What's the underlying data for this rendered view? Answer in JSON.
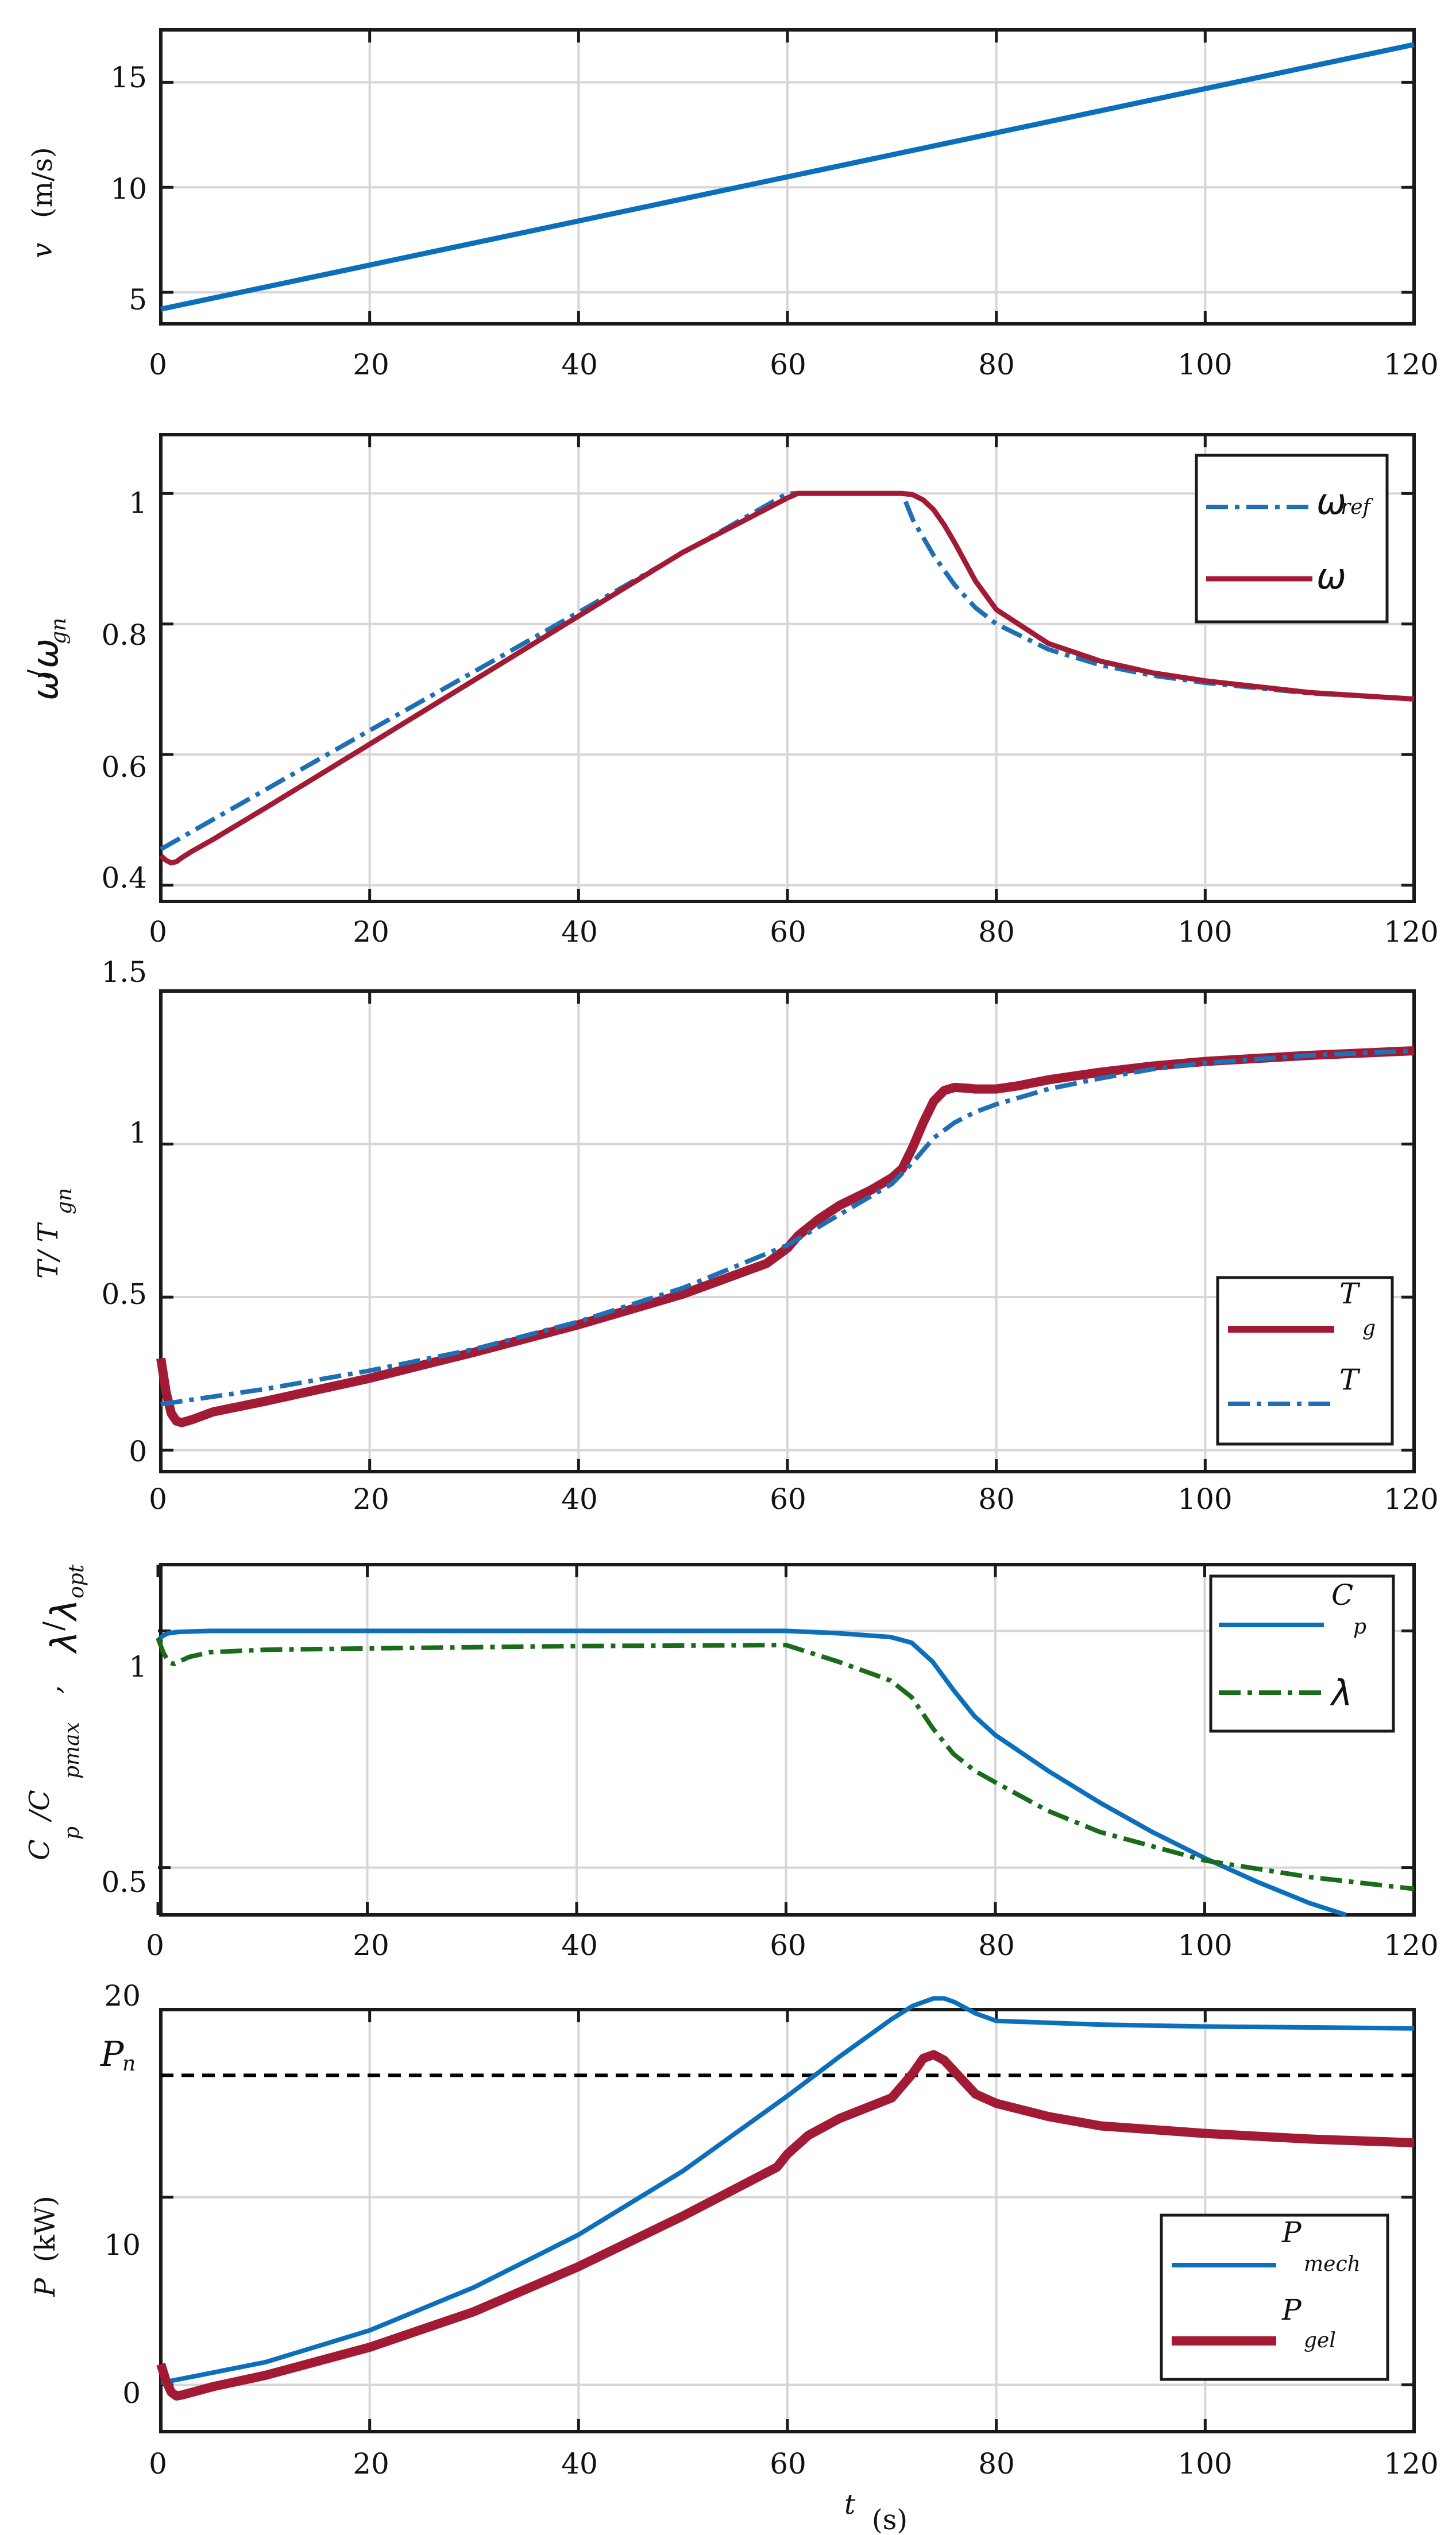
{
  "chart_data": [
    {
      "id": "wind",
      "type": "line",
      "xlim": [
        0,
        120
      ],
      "ylim": [
        3.5,
        17.5
      ],
      "xticks": [
        "0",
        "20",
        "40",
        "60",
        "80",
        "100",
        "120"
      ],
      "yticks": [
        "5",
        "10",
        "15"
      ],
      "ytick_values": [
        5,
        10,
        15
      ],
      "ylabel": "v",
      "ylabel_unit": "(m/s)",
      "series": [
        {
          "name": "v",
          "color": "#0c6fbc",
          "style": "solid",
          "x": [
            0,
            120
          ],
          "y": [
            4.2,
            16.8
          ]
        }
      ]
    },
    {
      "id": "speed",
      "type": "line",
      "xlim": [
        0,
        120
      ],
      "ylim": [
        0.375,
        1.09
      ],
      "xticks": [
        "0",
        "20",
        "40",
        "60",
        "80",
        "100",
        "120"
      ],
      "yticks": [
        "0.4",
        "0.6",
        "0.8",
        "1"
      ],
      "ytick_values": [
        0.4,
        0.6,
        0.8,
        1.0
      ],
      "ylabel_main": "ω",
      "ylabel_slash": "/",
      "ylabel_den": "ω",
      "ylabel_den_sub": "gn",
      "legend": {
        "position": "top-right",
        "entries": [
          {
            "label": "ω",
            "sub": "ref",
            "series": 0
          },
          {
            "label": "ω",
            "sub": "",
            "series": 1
          }
        ]
      },
      "series": [
        {
          "name": "ω_ref",
          "color": "#1f6fb5",
          "style": "dashdot",
          "x": [
            0,
            10,
            20,
            30,
            40,
            50,
            60,
            61,
            65,
            71,
            72,
            74,
            76,
            78,
            80,
            85,
            90,
            95,
            100,
            110,
            120
          ],
          "y": [
            0.455,
            0.546,
            0.637,
            0.727,
            0.818,
            0.909,
            1.0,
            1.0,
            1.0,
            1.0,
            0.96,
            0.905,
            0.86,
            0.825,
            0.8,
            0.761,
            0.737,
            0.721,
            0.71,
            0.694,
            0.685
          ]
        },
        {
          "name": "ω",
          "color": "#a31a34",
          "style": "solid",
          "x": [
            0,
            0.5,
            1,
            1.5,
            2,
            3,
            5,
            10,
            20,
            30,
            40,
            50,
            60,
            61,
            65,
            70,
            71,
            72,
            73,
            74,
            75,
            76,
            78,
            80,
            85,
            90,
            95,
            100,
            110,
            120
          ],
          "y": [
            0.445,
            0.438,
            0.434,
            0.436,
            0.442,
            0.452,
            0.47,
            0.518,
            0.616,
            0.714,
            0.812,
            0.91,
            0.993,
            1.0,
            1.0,
            1.0,
            1.0,
            0.998,
            0.99,
            0.975,
            0.952,
            0.925,
            0.866,
            0.822,
            0.77,
            0.743,
            0.725,
            0.713,
            0.695,
            0.685
          ]
        }
      ]
    },
    {
      "id": "torque",
      "type": "line",
      "xlim": [
        0,
        120
      ],
      "ylim": [
        -0.07,
        1.5
      ],
      "xticks": [
        "0",
        "20",
        "40",
        "60",
        "80",
        "100",
        "120"
      ],
      "yticks": [
        "0",
        "0.5",
        "1",
        "1.5"
      ],
      "ytick_values": [
        0,
        0.5,
        1.0,
        1.5
      ],
      "ylabel": "T/ T",
      "ylabel_sub": "gn",
      "legend": {
        "position": "bottom-right",
        "entries": [
          {
            "label": "T",
            "sub": "g",
            "series": 0
          },
          {
            "label": "T",
            "sub": "",
            "series": 1
          }
        ]
      },
      "series": [
        {
          "name": "T_g",
          "color": "#a31a34",
          "style": "solid",
          "x": [
            0,
            0.5,
            1,
            1.5,
            2,
            3,
            5,
            10,
            20,
            30,
            40,
            50,
            58,
            60,
            61,
            63,
            65,
            68,
            70,
            71,
            72,
            73,
            74,
            75,
            76,
            77,
            78,
            80,
            82,
            85,
            90,
            95,
            100,
            110,
            120
          ],
          "y": [
            0.3,
            0.19,
            0.12,
            0.095,
            0.09,
            0.1,
            0.125,
            0.16,
            0.235,
            0.32,
            0.41,
            0.51,
            0.61,
            0.66,
            0.7,
            0.755,
            0.8,
            0.85,
            0.89,
            0.92,
            0.99,
            1.07,
            1.14,
            1.175,
            1.185,
            1.183,
            1.18,
            1.18,
            1.19,
            1.21,
            1.235,
            1.255,
            1.27,
            1.29,
            1.305
          ]
        },
        {
          "name": "T",
          "color": "#1f6fb5",
          "style": "dashdot",
          "x": [
            0,
            10,
            20,
            30,
            40,
            50,
            60,
            65,
            70,
            72,
            74,
            76,
            78,
            80,
            85,
            90,
            95,
            100,
            110,
            120
          ],
          "y": [
            0.15,
            0.2,
            0.26,
            0.33,
            0.42,
            0.53,
            0.67,
            0.77,
            0.87,
            0.94,
            1.02,
            1.07,
            1.105,
            1.13,
            1.18,
            1.215,
            1.245,
            1.265,
            1.29,
            1.305
          ]
        }
      ]
    },
    {
      "id": "cp",
      "type": "line",
      "xlim": [
        0,
        120
      ],
      "ylim": [
        0.4,
        1.14
      ],
      "xticks": [
        "0",
        "20",
        "40",
        "60",
        "80",
        "100",
        "120"
      ],
      "yticks": [
        "0.5",
        "1"
      ],
      "ytick_values": [
        0.5,
        1.0
      ],
      "ylabel_cp": "C",
      "ylabel_cp_sub": "p",
      "ylabel_cpmax": "/C",
      "ylabel_cpmax_sub": "pmax",
      "ylabel_comma": ",",
      "ylabel_lambda": "λ",
      "ylabel_lambda_slash": "/",
      "ylabel_lambda_den": "λ",
      "ylabel_lambda_den_sub": "opt",
      "legend": {
        "position": "top-right",
        "entries": [
          {
            "label": "C",
            "sub": "p",
            "series": 0
          },
          {
            "label": "λ",
            "sub": "",
            "series": 1
          }
        ]
      },
      "series": [
        {
          "name": "C_p",
          "color": "#0c6fbc",
          "style": "solid",
          "x": [
            0,
            0.5,
            1,
            2,
            5,
            20,
            40,
            60,
            65,
            70,
            72,
            74,
            76,
            78,
            80,
            85,
            90,
            95,
            100,
            105,
            110,
            113.5
          ],
          "y": [
            0.98,
            0.99,
            0.995,
            0.998,
            1.0,
            1.0,
            1.0,
            1.0,
            0.995,
            0.987,
            0.975,
            0.935,
            0.875,
            0.82,
            0.78,
            0.705,
            0.637,
            0.575,
            0.52,
            0.47,
            0.425,
            0.4
          ]
        },
        {
          "name": "λ",
          "color": "#1a6b1a",
          "style": "dashdot",
          "x": [
            0,
            0.5,
            1,
            1.5,
            2,
            3,
            5,
            10,
            20,
            40,
            60,
            65,
            70,
            72,
            74,
            76,
            78,
            80,
            85,
            90,
            95,
            100,
            110,
            120
          ],
          "y": [
            0.985,
            0.955,
            0.935,
            0.93,
            0.935,
            0.945,
            0.955,
            0.96,
            0.963,
            0.968,
            0.97,
            0.935,
            0.895,
            0.86,
            0.795,
            0.74,
            0.705,
            0.68,
            0.62,
            0.575,
            0.545,
            0.515,
            0.48,
            0.455
          ]
        }
      ]
    },
    {
      "id": "power",
      "type": "line",
      "xlim": [
        0,
        120
      ],
      "ylim": [
        -2.5,
        20
      ],
      "xticks": [
        "0",
        "20",
        "40",
        "60",
        "80",
        "100",
        "120"
      ],
      "yticks": [
        "0",
        "10",
        "20"
      ],
      "ytick_values": [
        0,
        10,
        20
      ],
      "ylabel": "P",
      "ylabel_unit": "(kW)",
      "xlabel": "t",
      "xlabel_unit": "(s)",
      "reference_line": {
        "label": "P",
        "label_sub": "n",
        "y": 16.5,
        "color": "#000000",
        "style": "dashed"
      },
      "legend": {
        "position": "bottom-right",
        "entries": [
          {
            "label": "P",
            "sub": "mech",
            "series": 0
          },
          {
            "label": "P",
            "sub": "gel",
            "series": 1
          }
        ]
      },
      "series": [
        {
          "name": "P_mech",
          "color": "#0c6fbc",
          "style": "solid",
          "x": [
            0,
            10,
            20,
            30,
            40,
            50,
            60,
            65,
            70,
            72,
            74,
            75,
            76,
            78,
            80,
            85,
            90,
            100,
            110,
            120
          ],
          "y": [
            0.1,
            1.2,
            2.9,
            5.2,
            8.0,
            11.4,
            15.4,
            17.5,
            19.5,
            20.2,
            20.6,
            20.6,
            20.4,
            19.8,
            19.4,
            19.3,
            19.2,
            19.1,
            19.05,
            19.0
          ]
        },
        {
          "name": "P_gel",
          "color": "#a31a34",
          "style": "solid",
          "x": [
            0,
            0.5,
            1,
            1.5,
            2,
            3,
            5,
            10,
            20,
            30,
            40,
            50,
            59,
            60,
            62,
            65,
            70,
            72,
            73,
            74,
            75,
            76,
            78,
            80,
            85,
            90,
            100,
            110,
            120
          ],
          "y": [
            1.1,
            0.2,
            -0.4,
            -0.6,
            -0.55,
            -0.4,
            -0.1,
            0.5,
            2.0,
            3.9,
            6.3,
            9.0,
            11.6,
            12.3,
            13.3,
            14.2,
            15.3,
            16.6,
            17.4,
            17.6,
            17.3,
            16.7,
            15.5,
            15.0,
            14.3,
            13.8,
            13.4,
            13.1,
            12.9
          ]
        }
      ]
    }
  ]
}
